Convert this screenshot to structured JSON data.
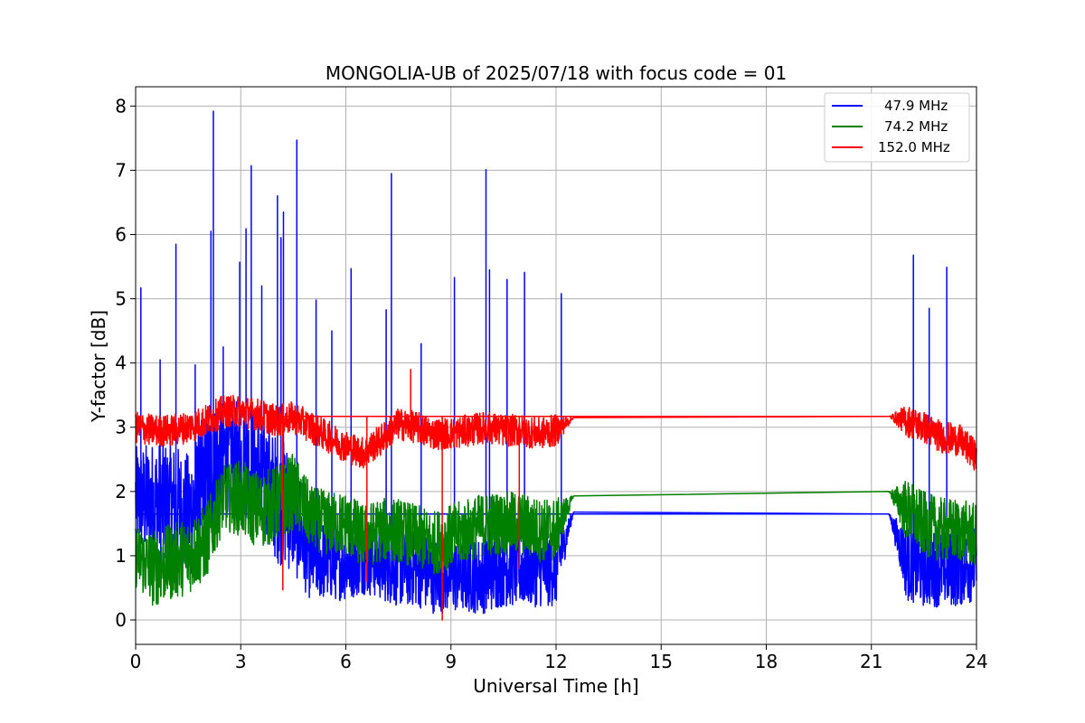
{
  "chart_data": {
    "type": "line",
    "title": "MONGOLIA-UB of 2025/07/18 with focus code = 01",
    "xlabel": "Universal Time [h]",
    "ylabel": "Y-factor [dB]",
    "xlim": [
      0,
      24
    ],
    "ylim": [
      -0.38,
      8.3
    ],
    "xticks": [
      0,
      3,
      6,
      9,
      12,
      15,
      18,
      21,
      24
    ],
    "yticks": [
      0,
      1,
      2,
      3,
      4,
      5,
      6,
      7,
      8
    ],
    "grid": true,
    "legend_position": "top-right",
    "data_gap": [
      12.5,
      21.5
    ],
    "series": [
      {
        "name": "47.9 MHz",
        "color": "#0000ff",
        "x": [
          0.0,
          0.5,
          1.0,
          1.5,
          2.0,
          2.5,
          3.0,
          3.5,
          4.0,
          4.5,
          5.0,
          5.5,
          6.0,
          6.5,
          7.0,
          7.5,
          8.0,
          8.5,
          9.0,
          9.5,
          10.0,
          10.5,
          11.0,
          11.5,
          12.0,
          12.5,
          21.5,
          22.0,
          22.5,
          23.0,
          23.5,
          24.0
        ],
        "y": [
          1.9,
          1.8,
          1.8,
          1.6,
          2.1,
          2.6,
          2.5,
          2.4,
          1.9,
          1.7,
          1.0,
          0.9,
          0.9,
          1.0,
          0.9,
          0.8,
          0.8,
          0.7,
          0.7,
          0.7,
          0.7,
          0.8,
          0.8,
          0.8,
          0.8,
          1.68,
          1.65,
          0.9,
          0.8,
          0.8,
          0.8,
          0.9
        ],
        "band": [
          0.8,
          1.0,
          1.0,
          1.0,
          1.2,
          0.9,
          0.9,
          0.9,
          1.0,
          1.0,
          0.7,
          0.6,
          0.6,
          0.6,
          0.6,
          0.6,
          0.6,
          0.6,
          0.6,
          0.6,
          0.6,
          0.6,
          0.6,
          0.6,
          0.6,
          0.0,
          0.0,
          0.6,
          0.6,
          0.6,
          0.6,
          0.6
        ],
        "spikes": [
          {
            "x": 0.15,
            "y": 5.17
          },
          {
            "x": 0.7,
            "y": 4.05
          },
          {
            "x": 1.15,
            "y": 5.85
          },
          {
            "x": 1.7,
            "y": 3.97
          },
          {
            "x": 2.15,
            "y": 6.05
          },
          {
            "x": 2.22,
            "y": 7.92
          },
          {
            "x": 2.5,
            "y": 4.25
          },
          {
            "x": 2.97,
            "y": 5.57
          },
          {
            "x": 3.15,
            "y": 6.09
          },
          {
            "x": 3.3,
            "y": 7.07
          },
          {
            "x": 3.6,
            "y": 5.2
          },
          {
            "x": 4.05,
            "y": 6.6
          },
          {
            "x": 4.15,
            "y": 5.95
          },
          {
            "x": 4.22,
            "y": 6.35
          },
          {
            "x": 4.6,
            "y": 7.47
          },
          {
            "x": 5.15,
            "y": 4.98
          },
          {
            "x": 5.6,
            "y": 4.5
          },
          {
            "x": 6.15,
            "y": 5.47
          },
          {
            "x": 7.15,
            "y": 4.83
          },
          {
            "x": 7.3,
            "y": 6.95
          },
          {
            "x": 8.15,
            "y": 4.3
          },
          {
            "x": 9.1,
            "y": 5.33
          },
          {
            "x": 10.0,
            "y": 7.01
          },
          {
            "x": 10.1,
            "y": 5.45
          },
          {
            "x": 10.6,
            "y": 5.3
          },
          {
            "x": 11.1,
            "y": 5.41
          },
          {
            "x": 12.15,
            "y": 5.08
          },
          {
            "x": 22.2,
            "y": 5.68
          },
          {
            "x": 22.65,
            "y": 4.85
          },
          {
            "x": 23.15,
            "y": 5.49
          }
        ]
      },
      {
        "name": "74.2 MHz",
        "color": "#008000",
        "x": [
          0.0,
          0.5,
          1.0,
          1.5,
          2.0,
          2.5,
          3.0,
          3.5,
          4.0,
          4.5,
          5.0,
          5.5,
          6.0,
          6.5,
          7.0,
          7.5,
          8.0,
          8.5,
          9.0,
          9.5,
          10.0,
          10.5,
          11.0,
          11.5,
          12.0,
          12.5,
          21.5,
          22.0,
          22.5,
          23.0,
          23.5,
          24.0
        ],
        "y": [
          1.0,
          0.8,
          0.9,
          1.0,
          1.2,
          1.9,
          1.9,
          1.7,
          1.8,
          2.0,
          1.6,
          1.5,
          1.5,
          1.3,
          1.4,
          1.4,
          1.3,
          1.2,
          1.3,
          1.4,
          1.5,
          1.5,
          1.5,
          1.4,
          1.4,
          1.93,
          2.0,
          1.7,
          1.5,
          1.4,
          1.4,
          1.3
        ],
        "band": [
          0.5,
          0.6,
          0.6,
          0.6,
          0.6,
          0.5,
          0.6,
          0.6,
          0.6,
          0.6,
          0.5,
          0.5,
          0.5,
          0.5,
          0.5,
          0.5,
          0.5,
          0.5,
          0.5,
          0.5,
          0.5,
          0.5,
          0.5,
          0.5,
          0.5,
          0.0,
          0.0,
          0.5,
          0.5,
          0.5,
          0.5,
          0.5
        ],
        "spikes": []
      },
      {
        "name": "152.0 MHz",
        "color": "#ff0000",
        "x": [
          0.0,
          0.5,
          1.0,
          1.5,
          2.0,
          2.5,
          3.0,
          3.5,
          4.0,
          4.5,
          5.0,
          5.5,
          6.0,
          6.5,
          7.0,
          7.5,
          8.0,
          8.5,
          9.0,
          9.5,
          10.0,
          10.5,
          11.0,
          11.5,
          12.0,
          12.5,
          21.5,
          22.0,
          22.5,
          23.0,
          23.5,
          24.0
        ],
        "y": [
          3.0,
          2.95,
          2.95,
          3.0,
          3.1,
          3.25,
          3.25,
          3.2,
          3.1,
          3.15,
          3.0,
          2.85,
          2.7,
          2.6,
          2.8,
          3.05,
          3.0,
          2.9,
          2.9,
          2.95,
          3.0,
          2.95,
          2.95,
          2.9,
          2.95,
          3.15,
          3.17,
          3.1,
          3.0,
          2.85,
          2.8,
          2.55
        ],
        "band": [
          0.25,
          0.25,
          0.25,
          0.25,
          0.25,
          0.25,
          0.25,
          0.25,
          0.25,
          0.25,
          0.25,
          0.25,
          0.25,
          0.25,
          0.25,
          0.25,
          0.25,
          0.25,
          0.25,
          0.25,
          0.25,
          0.25,
          0.25,
          0.25,
          0.25,
          0.0,
          0.0,
          0.25,
          0.25,
          0.25,
          0.25,
          0.25
        ],
        "spikes": [
          {
            "x": 4.2,
            "y": 0.47
          },
          {
            "x": 6.6,
            "y": 0.6
          },
          {
            "x": 7.85,
            "y": 3.9
          },
          {
            "x": 8.75,
            "y": 0.0
          },
          {
            "x": 10.95,
            "y": 0.8
          }
        ]
      }
    ]
  }
}
